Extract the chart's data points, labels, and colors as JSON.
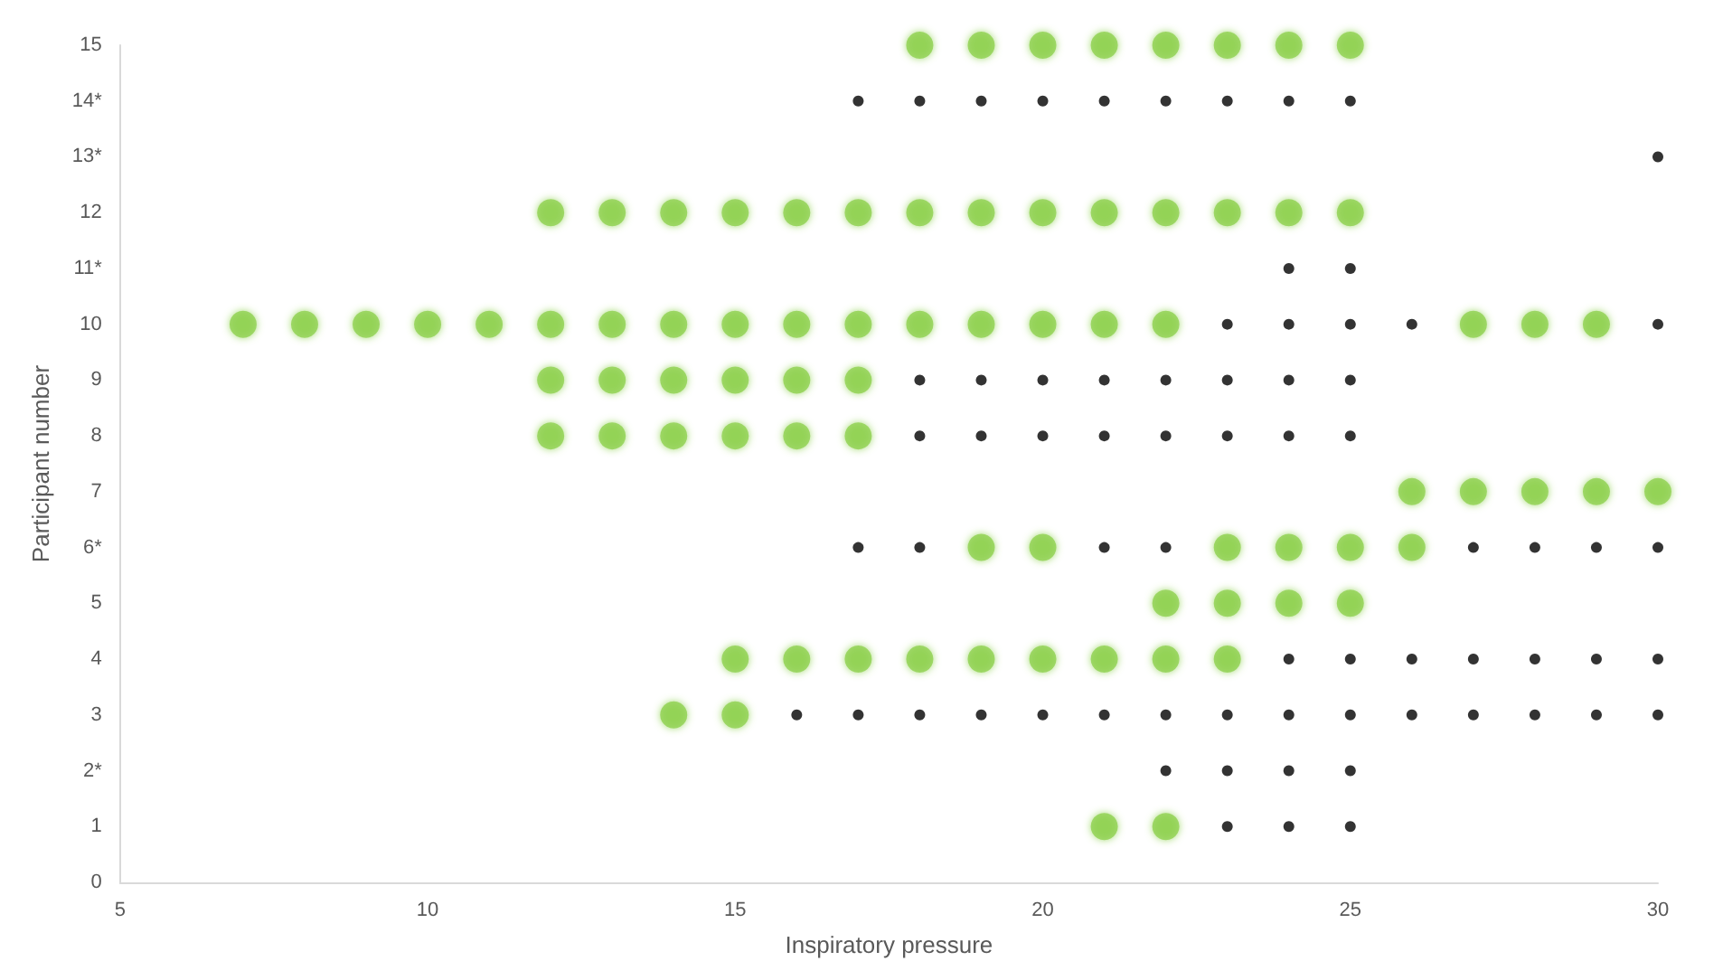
{
  "chart_data": {
    "type": "scatter",
    "xlabel": "Inspiratory pressure",
    "ylabel": "Participant number",
    "xlim": [
      5,
      30
    ],
    "xticks": [
      5,
      10,
      15,
      20,
      25,
      30
    ],
    "ylim": [
      0,
      15
    ],
    "yticks": [
      0,
      1,
      {
        "value": 2,
        "label": "2*"
      },
      3,
      4,
      5,
      {
        "value": 6,
        "label": "6*"
      },
      7,
      8,
      9,
      10,
      {
        "value": 11,
        "label": "11*"
      },
      12,
      {
        "value": 13,
        "label": "13*"
      },
      {
        "value": 14,
        "label": "14*"
      },
      15
    ],
    "grid": false,
    "marker": "circle",
    "series": [
      {
        "color": "#8fd14f",
        "x": [
          18,
          19,
          20,
          21,
          22,
          23,
          24,
          25,
          12,
          13,
          14,
          15,
          16,
          17,
          18,
          19,
          20,
          21,
          22,
          23,
          24,
          25,
          7,
          8,
          9,
          10,
          11,
          12,
          13,
          14,
          15,
          16,
          17,
          18,
          19,
          20,
          21,
          22,
          27,
          28,
          29,
          12,
          13,
          14,
          15,
          16,
          17,
          12,
          13,
          14,
          15,
          16,
          17,
          26,
          27,
          28,
          29,
          30,
          19,
          20,
          23,
          24,
          25,
          26,
          22,
          23,
          24,
          25,
          15,
          16,
          17,
          18,
          19,
          20,
          21,
          22,
          23,
          14,
          15,
          21,
          22
        ],
        "values": [
          15,
          15,
          15,
          15,
          15,
          15,
          15,
          15,
          12,
          12,
          12,
          12,
          12,
          12,
          12,
          12,
          12,
          12,
          12,
          12,
          12,
          12,
          10,
          10,
          10,
          10,
          10,
          10,
          10,
          10,
          10,
          10,
          10,
          10,
          10,
          10,
          10,
          10,
          10,
          10,
          10,
          9,
          9,
          9,
          9,
          9,
          9,
          8,
          8,
          8,
          8,
          8,
          8,
          7,
          7,
          7,
          7,
          7,
          6,
          6,
          6,
          6,
          6,
          6,
          5,
          5,
          5,
          5,
          4,
          4,
          4,
          4,
          4,
          4,
          4,
          4,
          4,
          3,
          3,
          1,
          1
        ]
      },
      {
        "color": "#000000",
        "x": [
          17,
          18,
          19,
          20,
          21,
          22,
          23,
          24,
          25,
          30,
          24,
          25,
          23,
          24,
          25,
          26,
          30,
          18,
          19,
          20,
          21,
          22,
          23,
          24,
          25,
          18,
          19,
          20,
          21,
          22,
          23,
          24,
          25,
          17,
          18,
          21,
          22,
          27,
          28,
          29,
          30,
          24,
          25,
          26,
          27,
          28,
          29,
          30,
          16,
          17,
          18,
          19,
          20,
          21,
          22,
          23,
          24,
          25,
          26,
          27,
          28,
          29,
          30,
          22,
          23,
          24,
          25,
          23,
          24,
          25
        ],
        "values": [
          14,
          14,
          14,
          14,
          14,
          14,
          14,
          14,
          14,
          13,
          11,
          11,
          10,
          10,
          10,
          10,
          10,
          9,
          9,
          9,
          9,
          9,
          9,
          9,
          9,
          8,
          8,
          8,
          8,
          8,
          8,
          8,
          8,
          6,
          6,
          6,
          6,
          6,
          6,
          6,
          6,
          4,
          4,
          4,
          4,
          4,
          4,
          4,
          3,
          3,
          3,
          3,
          3,
          3,
          3,
          3,
          3,
          3,
          3,
          3,
          3,
          3,
          3,
          2,
          2,
          2,
          2,
          1,
          1,
          1
        ]
      }
    ]
  }
}
